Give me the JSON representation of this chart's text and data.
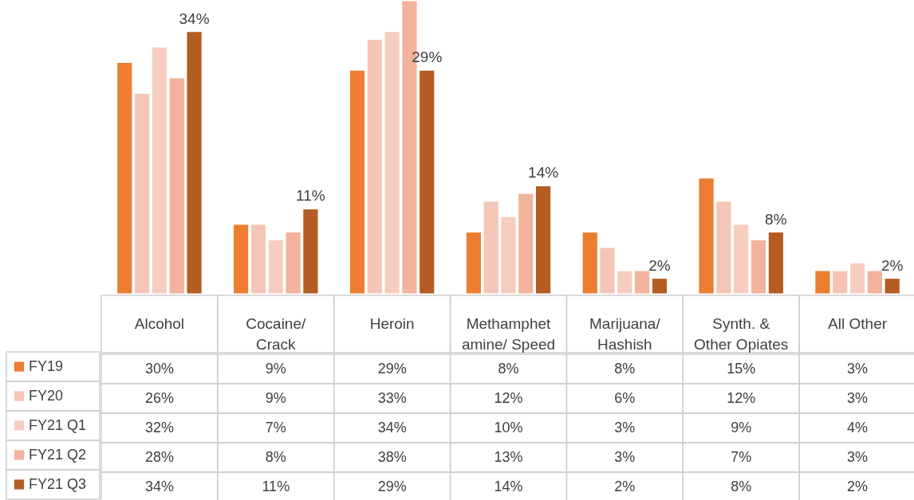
{
  "chart_data": {
    "type": "bar",
    "categories": [
      "Alcohol",
      "Cocaine/ Crack",
      "Heroin",
      "Methamphetamine/ Speed",
      "Marijuana/ Hashish",
      "Synth. & Other Opiates",
      "All Other"
    ],
    "series": [
      {
        "name": "FY19",
        "color": "#ed7d31",
        "values": [
          30,
          9,
          29,
          8,
          8,
          15,
          3
        ],
        "value_labels": [
          "30%",
          "9%",
          "29%",
          "8%",
          "8%",
          "15%",
          "3%"
        ]
      },
      {
        "name": "FY20",
        "color": "#f5c6b7",
        "values": [
          26,
          9,
          33,
          12,
          6,
          12,
          3
        ],
        "value_labels": [
          "26%",
          "9%",
          "33%",
          "12%",
          "6%",
          "12%",
          "3%"
        ]
      },
      {
        "name": "FY21 Q1",
        "color": "#f7cdc0",
        "values": [
          32,
          7,
          34,
          10,
          3,
          9,
          4
        ],
        "value_labels": [
          "32%",
          "7%",
          "34%",
          "10%",
          "3%",
          "9%",
          "4%"
        ]
      },
      {
        "name": "FY21 Q2",
        "color": "#f2b29b",
        "values": [
          28,
          8,
          38,
          13,
          3,
          7,
          3
        ],
        "value_labels": [
          "28%",
          "8%",
          "38%",
          "13%",
          "3%",
          "7%",
          "3%"
        ]
      },
      {
        "name": "FY21 Q3",
        "color": "#b45c22",
        "values": [
          34,
          11,
          29,
          14,
          2,
          8,
          2
        ],
        "value_labels": [
          "34%",
          "11%",
          "29%",
          "14%",
          "2%",
          "8%",
          "2%"
        ],
        "data_labels": true
      }
    ],
    "legend": "left"
  }
}
